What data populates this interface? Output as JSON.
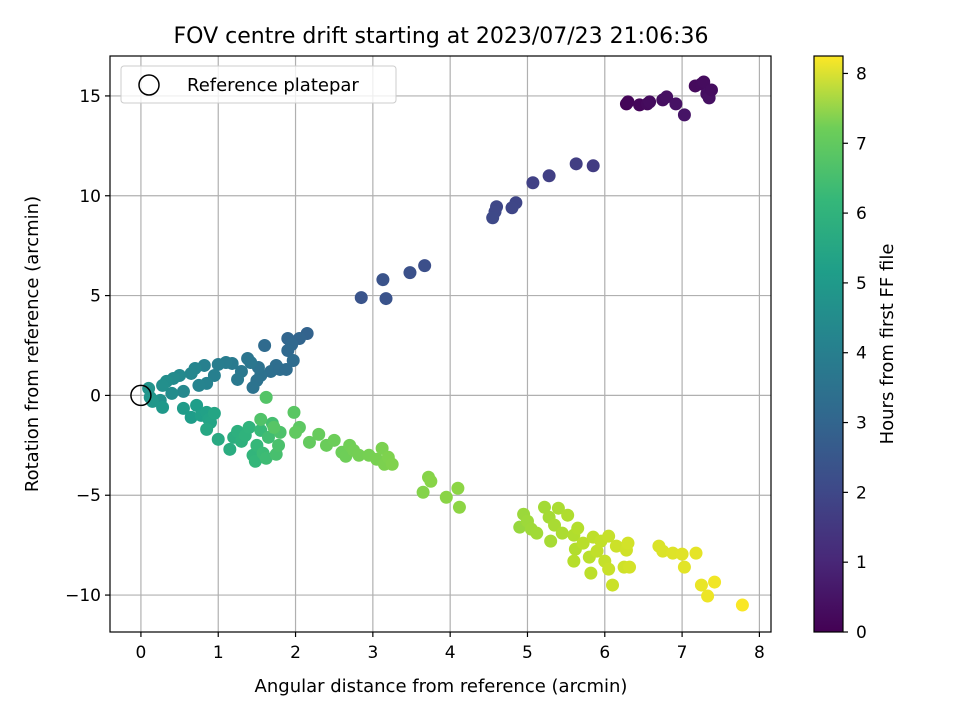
{
  "chart_data": {
    "type": "scatter",
    "title": "FOV centre drift starting at 2023/07/23 21:06:36",
    "xlabel": "Angular distance from reference (arcmin)",
    "ylabel": "Rotation from reference (arcmin)",
    "xlim": [
      -0.4,
      8.15
    ],
    "ylim": [
      -11.85,
      17.0
    ],
    "xticks": [
      0,
      1,
      2,
      3,
      4,
      5,
      6,
      7,
      8
    ],
    "yticks": [
      -10,
      -5,
      0,
      5,
      10,
      15
    ],
    "xtick_labels": [
      "0",
      "1",
      "2",
      "3",
      "4",
      "5",
      "6",
      "7",
      "8"
    ],
    "ytick_labels": [
      "−10",
      "−5",
      "0",
      "5",
      "10",
      "15"
    ],
    "grid": true,
    "legend": {
      "placement": "top-left",
      "entries": [
        {
          "label": "Reference platepar",
          "marker": "open-circle"
        }
      ]
    },
    "reference_point": {
      "x": 0,
      "y": 0
    },
    "colorbar": {
      "label": "Hours from first FF file",
      "colormap": "viridis",
      "range": [
        0,
        8.25
      ],
      "ticks": [
        0,
        1,
        2,
        3,
        4,
        5,
        6,
        7,
        8
      ],
      "tick_labels": [
        "0",
        "1",
        "2",
        "3",
        "4",
        "5",
        "6",
        "7",
        "8"
      ]
    },
    "points": [
      {
        "x": 6.28,
        "y": 14.6,
        "t": 0.05
      },
      {
        "x": 6.3,
        "y": 14.7,
        "t": 0.1
      },
      {
        "x": 6.45,
        "y": 14.55,
        "t": 0.15
      },
      {
        "x": 6.55,
        "y": 14.6,
        "t": 0.2
      },
      {
        "x": 6.58,
        "y": 14.7,
        "t": 0.25
      },
      {
        "x": 6.75,
        "y": 14.8,
        "t": 0.3
      },
      {
        "x": 6.8,
        "y": 14.95,
        "t": 0.35
      },
      {
        "x": 6.92,
        "y": 14.6,
        "t": 0.4
      },
      {
        "x": 7.03,
        "y": 14.05,
        "t": 0.45
      },
      {
        "x": 7.17,
        "y": 15.5,
        "t": 0.2
      },
      {
        "x": 7.25,
        "y": 15.6,
        "t": 0.22
      },
      {
        "x": 7.28,
        "y": 15.7,
        "t": 0.25
      },
      {
        "x": 7.32,
        "y": 15.1,
        "t": 0.3
      },
      {
        "x": 7.35,
        "y": 14.9,
        "t": 0.35
      },
      {
        "x": 7.38,
        "y": 15.3,
        "t": 0.28
      },
      {
        "x": 5.63,
        "y": 11.6,
        "t": 1.5
      },
      {
        "x": 5.85,
        "y": 11.5,
        "t": 1.45
      },
      {
        "x": 5.28,
        "y": 11.0,
        "t": 1.55
      },
      {
        "x": 5.07,
        "y": 10.65,
        "t": 1.6
      },
      {
        "x": 4.85,
        "y": 9.65,
        "t": 1.7
      },
      {
        "x": 4.8,
        "y": 9.4,
        "t": 1.72
      },
      {
        "x": 4.6,
        "y": 9.45,
        "t": 1.75
      },
      {
        "x": 4.58,
        "y": 9.2,
        "t": 1.78
      },
      {
        "x": 4.55,
        "y": 8.9,
        "t": 1.8
      },
      {
        "x": 3.67,
        "y": 6.5,
        "t": 2.0
      },
      {
        "x": 3.48,
        "y": 6.15,
        "t": 2.05
      },
      {
        "x": 3.13,
        "y": 5.8,
        "t": 2.1
      },
      {
        "x": 2.85,
        "y": 4.9,
        "t": 2.15
      },
      {
        "x": 3.17,
        "y": 4.85,
        "t": 2.12
      },
      {
        "x": 2.15,
        "y": 3.1,
        "t": 2.6
      },
      {
        "x": 2.05,
        "y": 2.85,
        "t": 2.65
      },
      {
        "x": 1.9,
        "y": 2.85,
        "t": 2.7
      },
      {
        "x": 1.95,
        "y": 2.55,
        "t": 2.75
      },
      {
        "x": 1.9,
        "y": 2.25,
        "t": 2.8
      },
      {
        "x": 1.6,
        "y": 2.5,
        "t": 2.85
      },
      {
        "x": 1.97,
        "y": 1.75,
        "t": 2.9
      },
      {
        "x": 1.75,
        "y": 1.5,
        "t": 2.95
      },
      {
        "x": 1.68,
        "y": 1.2,
        "t": 3.0
      },
      {
        "x": 1.55,
        "y": 1.0,
        "t": 3.05
      },
      {
        "x": 1.5,
        "y": 0.75,
        "t": 3.1
      },
      {
        "x": 1.45,
        "y": 0.4,
        "t": 3.15
      },
      {
        "x": 1.52,
        "y": 1.4,
        "t": 3.1
      },
      {
        "x": 1.8,
        "y": 1.3,
        "t": 2.95
      },
      {
        "x": 1.88,
        "y": 1.3,
        "t": 2.9
      },
      {
        "x": 1.38,
        "y": 1.85,
        "t": 3.2
      },
      {
        "x": 1.42,
        "y": 1.65,
        "t": 3.25
      },
      {
        "x": 1.3,
        "y": 1.2,
        "t": 3.3
      },
      {
        "x": 1.25,
        "y": 0.8,
        "t": 3.35
      },
      {
        "x": 1.18,
        "y": 1.6,
        "t": 3.4
      },
      {
        "x": 1.1,
        "y": 1.65,
        "t": 3.45
      },
      {
        "x": 1.0,
        "y": 1.55,
        "t": 3.5
      },
      {
        "x": 0.95,
        "y": 1.0,
        "t": 3.55
      },
      {
        "x": 0.82,
        "y": 1.5,
        "t": 3.6
      },
      {
        "x": 0.85,
        "y": 0.6,
        "t": 3.65
      },
      {
        "x": 0.75,
        "y": 0.5,
        "t": 3.7
      },
      {
        "x": 0.7,
        "y": 1.35,
        "t": 3.75
      },
      {
        "x": 0.65,
        "y": 1.1,
        "t": 3.8
      },
      {
        "x": 0.55,
        "y": 0.2,
        "t": 3.85
      },
      {
        "x": 0.5,
        "y": 1.0,
        "t": 3.9
      },
      {
        "x": 0.42,
        "y": 0.85,
        "t": 3.95
      },
      {
        "x": 0.4,
        "y": 0.1,
        "t": 4.0
      },
      {
        "x": 0.33,
        "y": 0.7,
        "t": 4.05
      },
      {
        "x": 0.28,
        "y": 0.5,
        "t": 4.1
      },
      {
        "x": 0.25,
        "y": -0.25,
        "t": 4.15
      },
      {
        "x": 0.1,
        "y": 0.35,
        "t": 4.25
      },
      {
        "x": 0.12,
        "y": -0.1,
        "t": 4.3
      },
      {
        "x": 0.15,
        "y": -0.3,
        "t": 4.35
      },
      {
        "x": 0.28,
        "y": -0.6,
        "t": 4.4
      },
      {
        "x": 0.55,
        "y": -0.65,
        "t": 4.5
      },
      {
        "x": 0.65,
        "y": -1.1,
        "t": 4.55
      },
      {
        "x": 0.72,
        "y": -0.5,
        "t": 4.6
      },
      {
        "x": 0.78,
        "y": -1.0,
        "t": 4.65
      },
      {
        "x": 0.85,
        "y": -0.85,
        "t": 4.7
      },
      {
        "x": 0.88,
        "y": -1.2,
        "t": 4.75
      },
      {
        "x": 0.9,
        "y": -1.35,
        "t": 4.8
      },
      {
        "x": 0.95,
        "y": -0.9,
        "t": 4.85
      },
      {
        "x": 0.85,
        "y": -1.7,
        "t": 4.9
      },
      {
        "x": 1.0,
        "y": -2.2,
        "t": 5.0
      },
      {
        "x": 1.15,
        "y": -2.7,
        "t": 5.1
      },
      {
        "x": 1.2,
        "y": -2.1,
        "t": 5.15
      },
      {
        "x": 1.25,
        "y": -1.8,
        "t": 5.2
      },
      {
        "x": 1.3,
        "y": -2.3,
        "t": 5.25
      },
      {
        "x": 1.35,
        "y": -2.0,
        "t": 5.3
      },
      {
        "x": 1.4,
        "y": -1.6,
        "t": 5.35
      },
      {
        "x": 1.45,
        "y": -3.0,
        "t": 5.4
      },
      {
        "x": 1.48,
        "y": -3.3,
        "t": 5.45
      },
      {
        "x": 1.5,
        "y": -2.5,
        "t": 5.5
      },
      {
        "x": 1.55,
        "y": -1.75,
        "t": 5.55
      },
      {
        "x": 1.58,
        "y": -2.9,
        "t": 5.6
      },
      {
        "x": 1.62,
        "y": -3.15,
        "t": 5.65
      },
      {
        "x": 1.65,
        "y": -2.1,
        "t": 5.7
      },
      {
        "x": 1.7,
        "y": -1.4,
        "t": 5.75
      },
      {
        "x": 1.75,
        "y": -2.95,
        "t": 5.8
      },
      {
        "x": 1.78,
        "y": -2.5,
        "t": 5.85
      },
      {
        "x": 1.8,
        "y": -1.85,
        "t": 5.9
      },
      {
        "x": 1.55,
        "y": -1.2,
        "t": 5.95
      },
      {
        "x": 1.62,
        "y": -0.1,
        "t": 6.0
      },
      {
        "x": 1.72,
        "y": -1.6,
        "t": 6.05
      },
      {
        "x": 1.98,
        "y": -0.85,
        "t": 6.1
      },
      {
        "x": 2.05,
        "y": -1.6,
        "t": 6.15
      },
      {
        "x": 2.0,
        "y": -1.85,
        "t": 6.2
      },
      {
        "x": 2.18,
        "y": -2.35,
        "t": 6.25
      },
      {
        "x": 2.3,
        "y": -1.95,
        "t": 6.3
      },
      {
        "x": 2.4,
        "y": -2.5,
        "t": 6.35
      },
      {
        "x": 2.5,
        "y": -2.25,
        "t": 6.38
      },
      {
        "x": 2.6,
        "y": -2.85,
        "t": 6.4
      },
      {
        "x": 2.65,
        "y": -3.05,
        "t": 6.42
      },
      {
        "x": 2.7,
        "y": -2.5,
        "t": 6.45
      },
      {
        "x": 2.75,
        "y": -2.75,
        "t": 6.48
      },
      {
        "x": 2.82,
        "y": -3.0,
        "t": 6.5
      },
      {
        "x": 2.95,
        "y": -3.0,
        "t": 6.52
      },
      {
        "x": 3.05,
        "y": -3.2,
        "t": 6.55
      },
      {
        "x": 3.12,
        "y": -2.65,
        "t": 6.58
      },
      {
        "x": 3.15,
        "y": -3.45,
        "t": 6.6
      },
      {
        "x": 3.2,
        "y": -3.1,
        "t": 6.62
      },
      {
        "x": 3.25,
        "y": -3.45,
        "t": 6.65
      },
      {
        "x": 3.65,
        "y": -4.85,
        "t": 6.7
      },
      {
        "x": 3.72,
        "y": -4.1,
        "t": 6.72
      },
      {
        "x": 3.75,
        "y": -4.3,
        "t": 6.75
      },
      {
        "x": 3.95,
        "y": -5.1,
        "t": 6.78
      },
      {
        "x": 4.1,
        "y": -4.65,
        "t": 6.8
      },
      {
        "x": 4.12,
        "y": -5.6,
        "t": 6.82
      },
      {
        "x": 4.95,
        "y": -5.95,
        "t": 7.0
      },
      {
        "x": 4.9,
        "y": -6.6,
        "t": 6.95
      },
      {
        "x": 5.0,
        "y": -6.3,
        "t": 7.02
      },
      {
        "x": 5.05,
        "y": -6.7,
        "t": 7.05
      },
      {
        "x": 5.12,
        "y": -6.9,
        "t": 7.08
      },
      {
        "x": 5.22,
        "y": -5.6,
        "t": 7.1
      },
      {
        "x": 5.28,
        "y": -6.1,
        "t": 7.12
      },
      {
        "x": 5.3,
        "y": -7.3,
        "t": 7.15
      },
      {
        "x": 5.35,
        "y": -6.5,
        "t": 7.18
      },
      {
        "x": 5.4,
        "y": -5.65,
        "t": 7.2
      },
      {
        "x": 5.45,
        "y": -6.9,
        "t": 7.22
      },
      {
        "x": 5.52,
        "y": -6.0,
        "t": 7.25
      },
      {
        "x": 5.6,
        "y": -7.0,
        "t": 7.28
      },
      {
        "x": 5.62,
        "y": -7.7,
        "t": 7.3
      },
      {
        "x": 5.65,
        "y": -6.65,
        "t": 7.32
      },
      {
        "x": 5.6,
        "y": -8.3,
        "t": 7.35
      },
      {
        "x": 5.72,
        "y": -7.4,
        "t": 7.38
      },
      {
        "x": 5.8,
        "y": -8.1,
        "t": 7.4
      },
      {
        "x": 5.82,
        "y": -8.9,
        "t": 7.42
      },
      {
        "x": 5.85,
        "y": -7.1,
        "t": 7.45
      },
      {
        "x": 5.9,
        "y": -7.8,
        "t": 7.48
      },
      {
        "x": 5.95,
        "y": -7.3,
        "t": 7.5
      },
      {
        "x": 6.0,
        "y": -8.3,
        "t": 7.52
      },
      {
        "x": 6.05,
        "y": -7.05,
        "t": 7.55
      },
      {
        "x": 6.05,
        "y": -8.7,
        "t": 7.58
      },
      {
        "x": 6.1,
        "y": -9.5,
        "t": 7.6
      },
      {
        "x": 6.15,
        "y": -7.55,
        "t": 7.62
      },
      {
        "x": 6.25,
        "y": -8.6,
        "t": 7.65
      },
      {
        "x": 6.28,
        "y": -7.75,
        "t": 7.68
      },
      {
        "x": 6.3,
        "y": -7.4,
        "t": 7.7
      },
      {
        "x": 6.32,
        "y": -8.6,
        "t": 7.72
      },
      {
        "x": 6.7,
        "y": -7.55,
        "t": 7.8
      },
      {
        "x": 6.75,
        "y": -7.8,
        "t": 7.82
      },
      {
        "x": 6.88,
        "y": -7.9,
        "t": 7.85
      },
      {
        "x": 7.0,
        "y": -7.95,
        "t": 7.88
      },
      {
        "x": 7.03,
        "y": -8.6,
        "t": 7.9
      },
      {
        "x": 7.18,
        "y": -7.9,
        "t": 7.95
      },
      {
        "x": 7.25,
        "y": -9.5,
        "t": 8.0
      },
      {
        "x": 7.33,
        "y": -10.05,
        "t": 8.05
      },
      {
        "x": 7.42,
        "y": -9.35,
        "t": 8.1
      },
      {
        "x": 7.78,
        "y": -10.5,
        "t": 8.2
      }
    ]
  }
}
